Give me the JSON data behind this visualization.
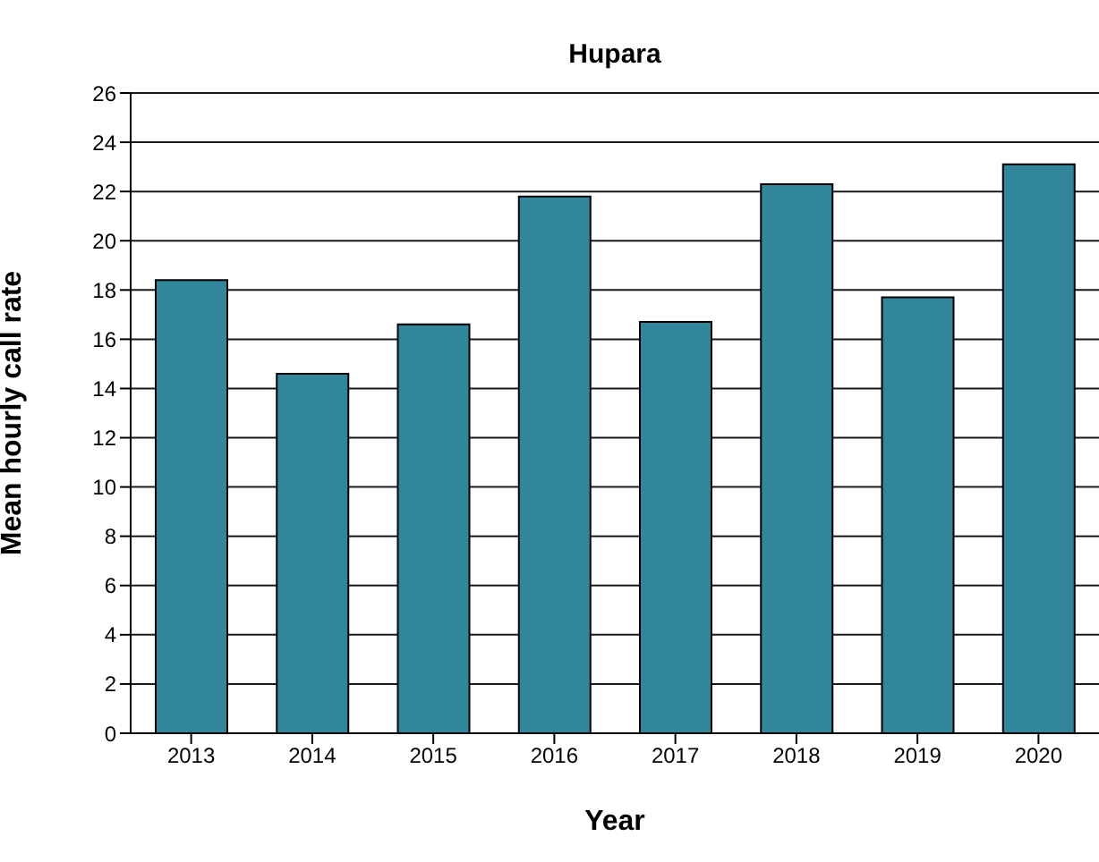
{
  "chart_data": {
    "type": "bar",
    "title": "Hupara",
    "xlabel": "Year",
    "ylabel": "Mean hourly call rate",
    "categories": [
      "2013",
      "2014",
      "2015",
      "2016",
      "2017",
      "2018",
      "2019",
      "2020"
    ],
    "values": [
      18.4,
      14.6,
      16.6,
      21.8,
      16.7,
      22.3,
      17.7,
      23.1
    ],
    "color": "#32869c",
    "ylim": [
      0,
      26
    ],
    "yticks": [
      0,
      2,
      4,
      6,
      8,
      10,
      12,
      14,
      16,
      18,
      20,
      22,
      24,
      26
    ],
    "grid": "y"
  }
}
